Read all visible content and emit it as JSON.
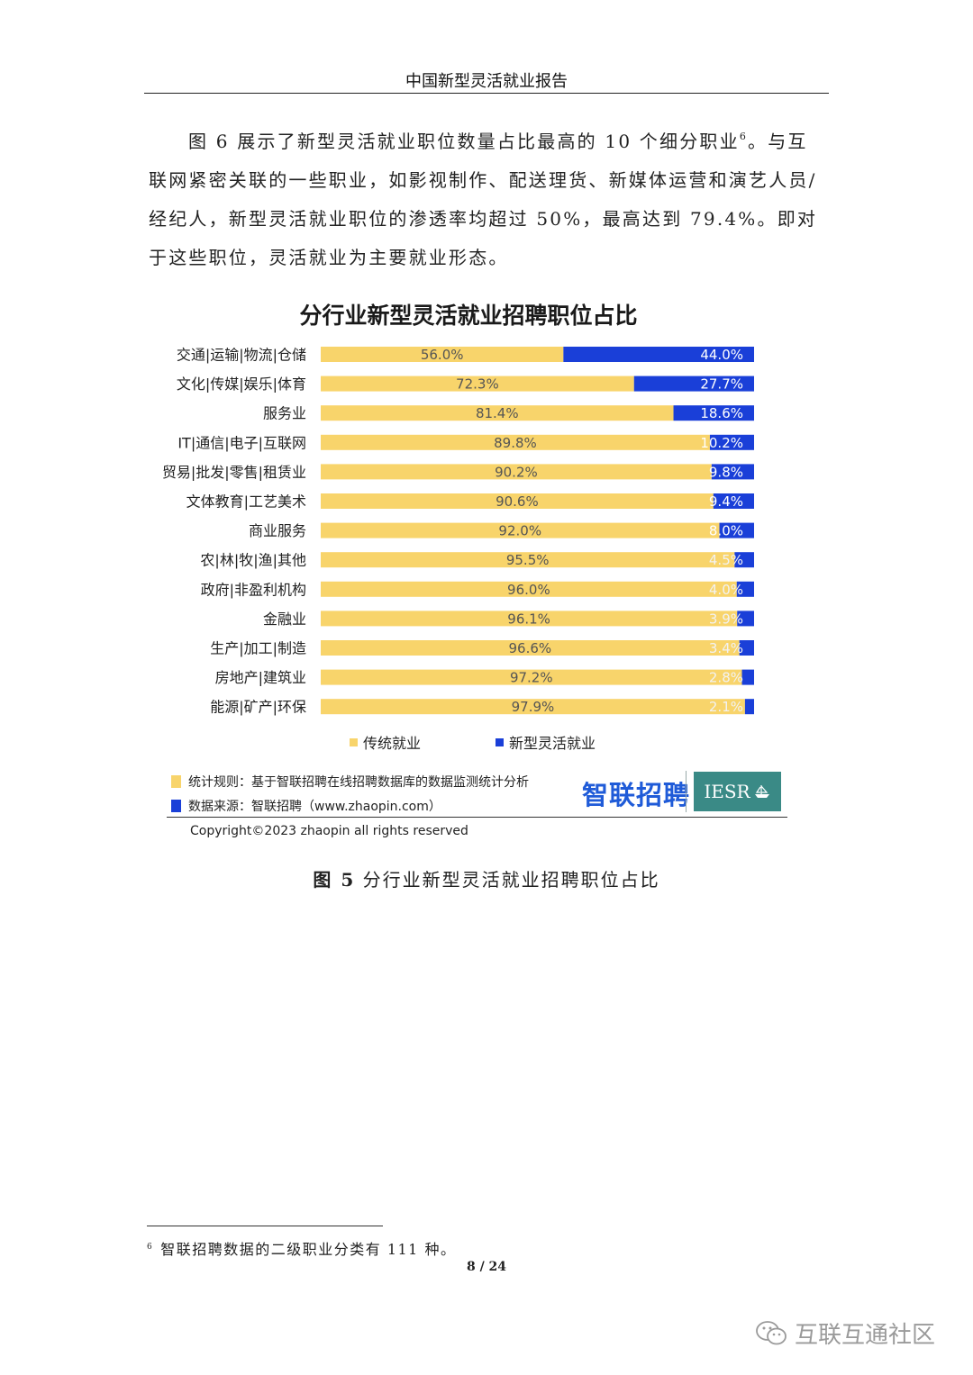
{
  "header": {
    "title": "中国新型灵活就业报告"
  },
  "body": {
    "p1": "图 6 展示了新型灵活就业职位数量占比最高的 10 个细分职业",
    "p1_sup": "6",
    "p2": "。与互联网紧密关联的一些职业，如影视制作、配送理货、新媒体运营和演艺人员/经纪人，新型灵活就业职位的渗透率均超过 50%，最高达到 79.4%。即对于这些职位，灵活就业为主要就业形态。"
  },
  "chart_data": {
    "type": "bar",
    "orientation": "horizontal",
    "stacked": true,
    "title": "分行业新型灵活就业招聘职位占比",
    "categories": [
      "交通|运输|物流|仓储",
      "文化|传媒|娱乐|体育",
      "服务业",
      "IT|通信|电子|互联网",
      "贸易|批发|零售|租赁业",
      "文体教育|工艺美术",
      "商业服务",
      "农|林|牧|渔|其他",
      "政府|非盈利机构",
      "金融业",
      "生产|加工|制造",
      "房地产|建筑业",
      "能源|矿产|环保"
    ],
    "series": [
      {
        "name": "传统就业",
        "color": "#f8d46b",
        "values": [
          56.0,
          72.3,
          81.4,
          89.8,
          90.2,
          90.6,
          92.0,
          95.5,
          96.0,
          96.1,
          96.6,
          97.2,
          97.9
        ]
      },
      {
        "name": "新型灵活就业",
        "color": "#1a3fd8",
        "values": [
          44.0,
          27.7,
          18.6,
          10.2,
          9.8,
          9.4,
          8.0,
          4.5,
          4.0,
          3.9,
          3.4,
          2.8,
          2.1
        ]
      }
    ],
    "value_labels": {
      "传统就业": [
        "56.0%",
        "72.3%",
        "81.4%",
        "89.8%",
        "90.2%",
        "90.6%",
        "92.0%",
        "95.5%",
        "96.0%",
        "96.1%",
        "96.6%",
        "97.2%",
        "97.9%"
      ],
      "新型灵活就业": [
        "44.0%",
        "27.7%",
        "18.6%",
        "10.2%",
        "9.8%",
        "9.4%",
        "8.0%",
        "4.5%",
        "4.0%",
        "3.9%",
        "3.4%",
        "2.8%",
        "2.1%"
      ]
    },
    "xlim": [
      0,
      100
    ],
    "grid": false,
    "legend_position": "bottom"
  },
  "chart_notes": {
    "rule": "统计规则：基于智联招聘在线招聘数据库的数据监测统计分析",
    "source": "数据来源：智联招聘（www.zhaopin.com）",
    "logo_text": "智联招聘",
    "iesr_text": "IESR",
    "copyright": "Copyright©2023 zhaopin all rights reserved"
  },
  "figure": {
    "num": "图 5",
    "caption": "分行业新型灵活就业招聘职位占比"
  },
  "footnote": {
    "mark": "6",
    "text": "智联招聘数据的二级职业分类有 111 种。"
  },
  "page": {
    "number": "8 / 24"
  },
  "watermark": {
    "text": "互联互通社区",
    "icon": "wechat-icon"
  }
}
